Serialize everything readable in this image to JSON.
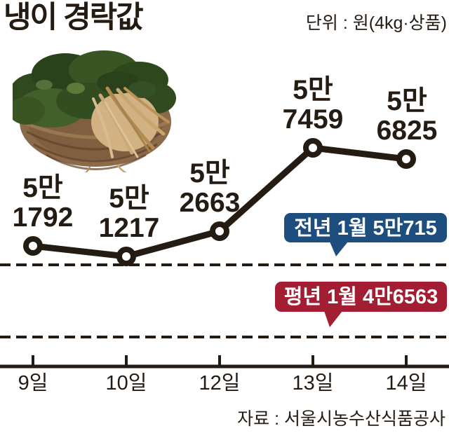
{
  "header": {
    "title": "냉이 경락값",
    "unit_label": "단위 : 원(4kg·상품)"
  },
  "footer": {
    "source": "자료 : 서울시농수산식품공사"
  },
  "colors": {
    "ink": "#241b13",
    "background": "#ffffff",
    "prev_year_blue": "#1e4e7d",
    "avg_year_red": "#a31e33",
    "bubble_text": "#ffffff"
  },
  "chart_data": {
    "type": "line",
    "title": "냉이 경락값",
    "unit": "원(4kg·상품)",
    "xlabel": "",
    "ylabel": "",
    "categories": [
      "9일",
      "10일",
      "12일",
      "13일",
      "14일"
    ],
    "values": [
      51792,
      51217,
      52663,
      57459,
      56825
    ],
    "point_labels": [
      [
        "5만",
        "1792"
      ],
      [
        "5만",
        "1217"
      ],
      [
        "5만",
        "2663"
      ],
      [
        "5만",
        "7459"
      ],
      [
        "5만",
        "6825"
      ]
    ],
    "reference_lines": [
      {
        "id": "prev-year",
        "label": "전년 1월 5만715",
        "value": 50715,
        "color": "#1e4e7d"
      },
      {
        "id": "avg-year",
        "label": "평년 1월 4만6563",
        "value": 46563,
        "color": "#a31e33"
      }
    ],
    "ylim": [
      44500,
      59500
    ],
    "grid": false,
    "legend": "none",
    "line_color": "#241b13",
    "marker": "open-circle",
    "source": "서울시농수산식품공사"
  }
}
